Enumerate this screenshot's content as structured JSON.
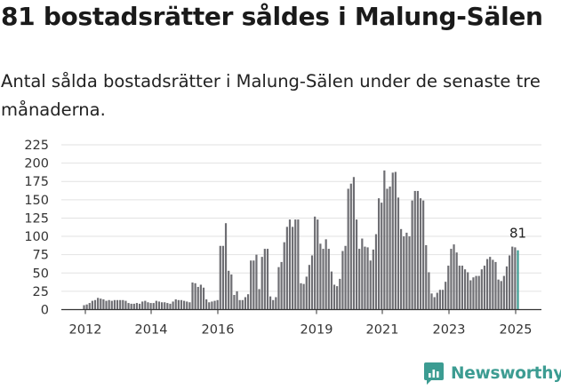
{
  "header": {
    "title": "81 bostadsrätter såldes i Malung-Sälen",
    "subtitle": "Antal sålda bostadsrätter i Malung-Sälen under de senaste tre månaderna."
  },
  "brand": {
    "name": "Newsworthy",
    "color": "#3c9c92"
  },
  "chart_data": {
    "type": "bar",
    "title": "",
    "xlabel": "",
    "ylabel": "",
    "ylim": [
      0,
      225
    ],
    "yticks": [
      0,
      25,
      50,
      75,
      100,
      125,
      150,
      175,
      200,
      225
    ],
    "xtick_labels": [
      "2012",
      "2014",
      "2016",
      "2019",
      "2021",
      "2023",
      "2025"
    ],
    "grid": true,
    "bar_color": "#6e6e73",
    "highlight_color": "#3c9c92",
    "annotation": {
      "text": "81",
      "value": 81
    },
    "series": [
      {
        "values": [
          6,
          7,
          9,
          12,
          13,
          16,
          15,
          14,
          12,
          13,
          12,
          13,
          13,
          13,
          13,
          12,
          9,
          8,
          8,
          9,
          8,
          11,
          12,
          10,
          9,
          9,
          12,
          11,
          10,
          10,
          9,
          8,
          11,
          14,
          13,
          13,
          12,
          11,
          10,
          37,
          36,
          31,
          34,
          30,
          14,
          10,
          11,
          12,
          13,
          87,
          87,
          118,
          53,
          48,
          20,
          25,
          13,
          13,
          17,
          21,
          67,
          67,
          75,
          28,
          72,
          83,
          83,
          18,
          13,
          17,
          58,
          65,
          92,
          113,
          123,
          113,
          123,
          123,
          36,
          35,
          45,
          61,
          74,
          127,
          123,
          90,
          83,
          96,
          83,
          52,
          34,
          32,
          42,
          80,
          87,
          165,
          172,
          181,
          123,
          83,
          97,
          86,
          85,
          67,
          82,
          103,
          152,
          146,
          190,
          165,
          168,
          187,
          188,
          153,
          110,
          100,
          105,
          100,
          149,
          162,
          162,
          152,
          149,
          88,
          51,
          22,
          17,
          23,
          27,
          27,
          38,
          60,
          83,
          89,
          78,
          60,
          60,
          55,
          51,
          40,
          44,
          46,
          46,
          55,
          60,
          69,
          72,
          68,
          65,
          41,
          39,
          46,
          59,
          74,
          86,
          85,
          81
        ]
      }
    ]
  }
}
